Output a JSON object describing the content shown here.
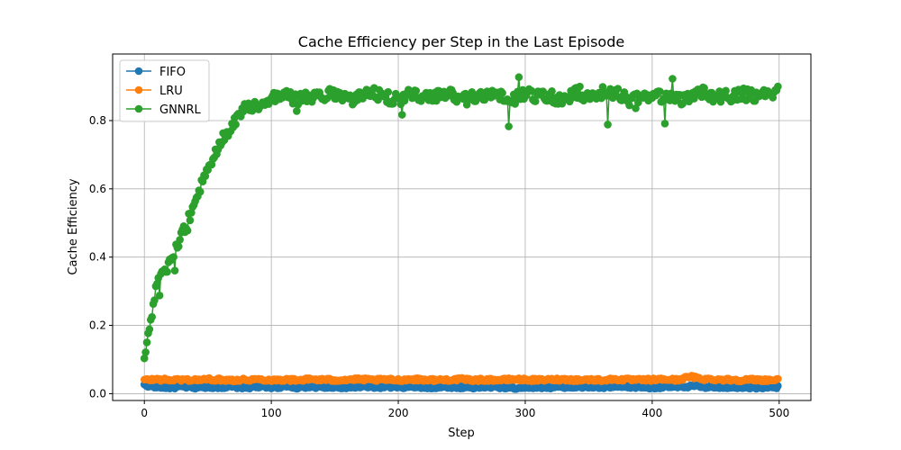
{
  "chart_data": {
    "type": "line",
    "title": "Cache Efficiency per Step in the Last Episode",
    "xlabel": "Step",
    "ylabel": "Cache Efficiency",
    "xlim": [
      -25,
      525
    ],
    "ylim": [
      -0.02,
      0.995
    ],
    "xticks": [
      0,
      100,
      200,
      300,
      400,
      500
    ],
    "yticks": [
      0.0,
      0.2,
      0.4,
      0.6,
      0.8
    ],
    "ytick_labels": [
      "0.0",
      "0.2",
      "0.4",
      "0.6",
      "0.8"
    ],
    "grid": true,
    "legend_position": "upper-left",
    "marker": "circle",
    "x_range": [
      0,
      499
    ],
    "series": [
      {
        "name": "FIFO",
        "color": "#1f77b4",
        "values_sampled_every_10_steps": [
          0.025,
          0.02,
          0.018,
          0.02,
          0.018,
          0.02,
          0.019,
          0.02,
          0.018,
          0.02,
          0.019,
          0.02,
          0.018,
          0.021,
          0.019,
          0.02,
          0.018,
          0.02,
          0.019,
          0.02,
          0.018,
          0.02,
          0.019,
          0.018,
          0.02,
          0.019,
          0.018,
          0.02,
          0.019,
          0.016,
          0.019,
          0.02,
          0.018,
          0.02,
          0.019,
          0.02,
          0.018,
          0.02,
          0.019,
          0.02,
          0.018,
          0.02,
          0.019,
          0.022,
          0.02,
          0.02,
          0.019,
          0.02,
          0.018,
          0.019
        ]
      },
      {
        "name": "LRU",
        "color": "#ff7f0e",
        "values_sampled_every_10_steps": [
          0.04,
          0.042,
          0.04,
          0.041,
          0.04,
          0.042,
          0.041,
          0.04,
          0.041,
          0.042,
          0.04,
          0.041,
          0.04,
          0.042,
          0.041,
          0.04,
          0.041,
          0.042,
          0.04,
          0.041,
          0.04,
          0.042,
          0.041,
          0.04,
          0.041,
          0.042,
          0.04,
          0.041,
          0.04,
          0.042,
          0.041,
          0.04,
          0.041,
          0.042,
          0.04,
          0.041,
          0.04,
          0.042,
          0.041,
          0.04,
          0.041,
          0.042,
          0.04,
          0.05,
          0.043,
          0.042,
          0.041,
          0.04,
          0.041,
          0.04
        ]
      },
      {
        "name": "GNNRL",
        "color": "#2ca02c",
        "values_sampled_every_10_steps": [
          0.1,
          0.32,
          0.38,
          0.47,
          0.56,
          0.66,
          0.74,
          0.79,
          0.84,
          0.85,
          0.87,
          0.88,
          0.86,
          0.87,
          0.87,
          0.88,
          0.86,
          0.87,
          0.88,
          0.87,
          0.86,
          0.88,
          0.87,
          0.87,
          0.88,
          0.86,
          0.87,
          0.88,
          0.87,
          0.86,
          0.88,
          0.87,
          0.87,
          0.86,
          0.88,
          0.87,
          0.87,
          0.88,
          0.87,
          0.86,
          0.87,
          0.87,
          0.86,
          0.87,
          0.88,
          0.87,
          0.87,
          0.88,
          0.87,
          0.88
        ]
      }
    ]
  }
}
